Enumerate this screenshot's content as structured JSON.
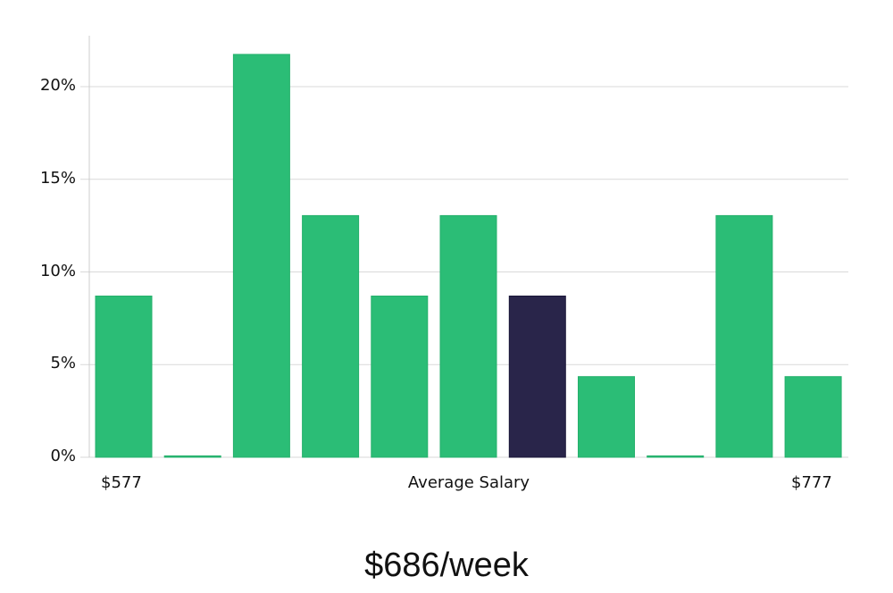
{
  "chart_data": {
    "type": "bar",
    "title": "$686/week",
    "xlabel": "Average Salary",
    "ylabel": "",
    "x_range_labels": {
      "min": "$577",
      "max": "$777"
    },
    "categories": [
      "bin1",
      "bin2",
      "bin3",
      "bin4",
      "bin5",
      "bin6",
      "bin7",
      "bin8",
      "bin9",
      "bin10",
      "bin11"
    ],
    "values": [
      8.7,
      0,
      21.74,
      13.04,
      8.7,
      13.04,
      8.7,
      4.35,
      0,
      13.04,
      4.35
    ],
    "highlight_index": 6,
    "ylim": [
      0,
      22.7
    ],
    "yticks": [
      0,
      5,
      10,
      15,
      20
    ],
    "ytick_labels": [
      "0%",
      "5%",
      "10%",
      "15%",
      "20%"
    ],
    "grid": true,
    "legend": null,
    "colors": {
      "bar": "#2bbd76",
      "highlight": "#29254a",
      "grid": "#d9d9d9",
      "axis": "#cccccc"
    }
  },
  "labels": {
    "x_min": "$577",
    "x_center": "Average Salary",
    "x_max": "$777",
    "title": "$686/week"
  }
}
